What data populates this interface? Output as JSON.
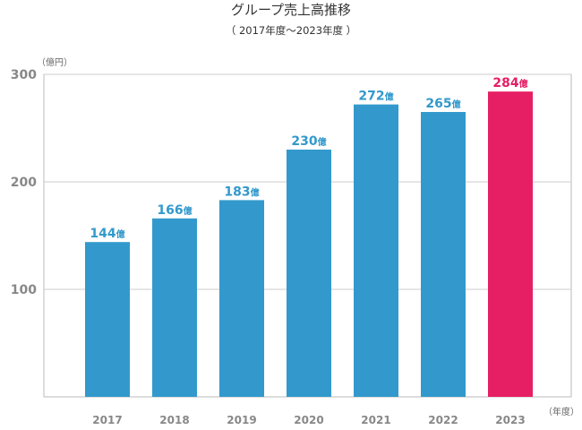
{
  "chart_data": {
    "type": "bar",
    "title": "グループ売上高推移",
    "subtitle": "（ 2017年度～2023年度 ）",
    "ylabel": "（億円）",
    "xlabel": "（年度）",
    "ylim": [
      0,
      300
    ],
    "yticks": [
      100,
      200,
      300
    ],
    "grid": true,
    "categories": [
      "2017",
      "2018",
      "2019",
      "2020",
      "2021",
      "2022",
      "2023"
    ],
    "values": [
      144,
      166,
      183,
      230,
      272,
      265,
      284
    ],
    "labels": [
      "144億",
      "166億",
      "183億",
      "230億",
      "272億",
      "265億",
      "284億"
    ],
    "colors": [
      "#3399cc",
      "#3399cc",
      "#3399cc",
      "#3399cc",
      "#3399cc",
      "#3399cc",
      "#e61e64"
    ],
    "label_colors": [
      "#3399cc",
      "#3399cc",
      "#3399cc",
      "#3399cc",
      "#3399cc",
      "#3399cc",
      "#e61e64"
    ]
  }
}
